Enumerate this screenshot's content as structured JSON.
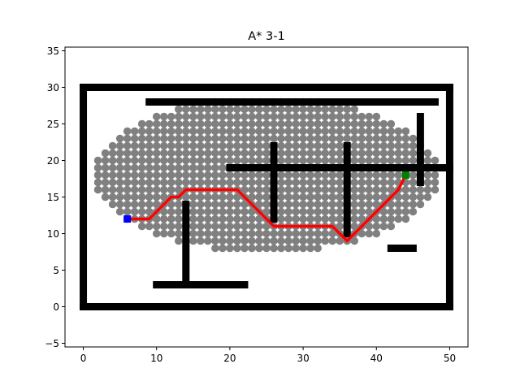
{
  "chart_data": {
    "type": "scatter",
    "title": "A* 3-1",
    "xlabel": "",
    "ylabel": "",
    "xlim": [
      -2.5,
      52.5
    ],
    "ylim": [
      -5.5,
      35.5
    ],
    "xticks": [
      0,
      10,
      20,
      30,
      40,
      50
    ],
    "yticks": [
      -5,
      0,
      5,
      10,
      15,
      20,
      25,
      30,
      35
    ],
    "grid": false,
    "legend": "none",
    "colors": {
      "explored": "#808080",
      "obstacle": "#000000",
      "path": "#ff0000",
      "start": "#0000ff",
      "goal": "#008000"
    },
    "obstacles": [
      {
        "from": [
          0,
          30
        ],
        "to": [
          50,
          30
        ]
      },
      {
        "from": [
          0,
          0
        ],
        "to": [
          50,
          0
        ]
      },
      {
        "from": [
          0,
          0
        ],
        "to": [
          0,
          30
        ]
      },
      {
        "from": [
          50,
          0
        ],
        "to": [
          50,
          30
        ]
      },
      {
        "from": [
          9,
          28
        ],
        "to": [
          48,
          28
        ]
      },
      {
        "from": [
          20,
          19
        ],
        "to": [
          50,
          19
        ]
      },
      {
        "from": [
          26,
          12
        ],
        "to": [
          26,
          22
        ]
      },
      {
        "from": [
          36,
          10
        ],
        "to": [
          36,
          22
        ]
      },
      {
        "from": [
          46,
          17
        ],
        "to": [
          46,
          26
        ]
      },
      {
        "from": [
          14,
          4
        ],
        "to": [
          14,
          14
        ]
      },
      {
        "from": [
          10,
          3
        ],
        "to": [
          22,
          3
        ]
      },
      {
        "from": [
          42,
          8
        ],
        "to": [
          45,
          8
        ]
      }
    ],
    "explored_region": {
      "center": [
        25,
        18
      ],
      "rx": 23.5,
      "ry": 10.5
    },
    "path": [
      [
        6,
        12
      ],
      [
        9,
        12
      ],
      [
        12,
        15
      ],
      [
        13,
        15
      ],
      [
        14,
        16
      ],
      [
        21,
        16
      ],
      [
        26,
        11
      ],
      [
        34,
        11
      ],
      [
        36,
        9
      ],
      [
        37,
        10
      ],
      [
        42,
        15
      ],
      [
        43,
        16
      ],
      [
        44,
        18
      ]
    ],
    "start": [
      6,
      12
    ],
    "goal": [
      44,
      18
    ]
  }
}
